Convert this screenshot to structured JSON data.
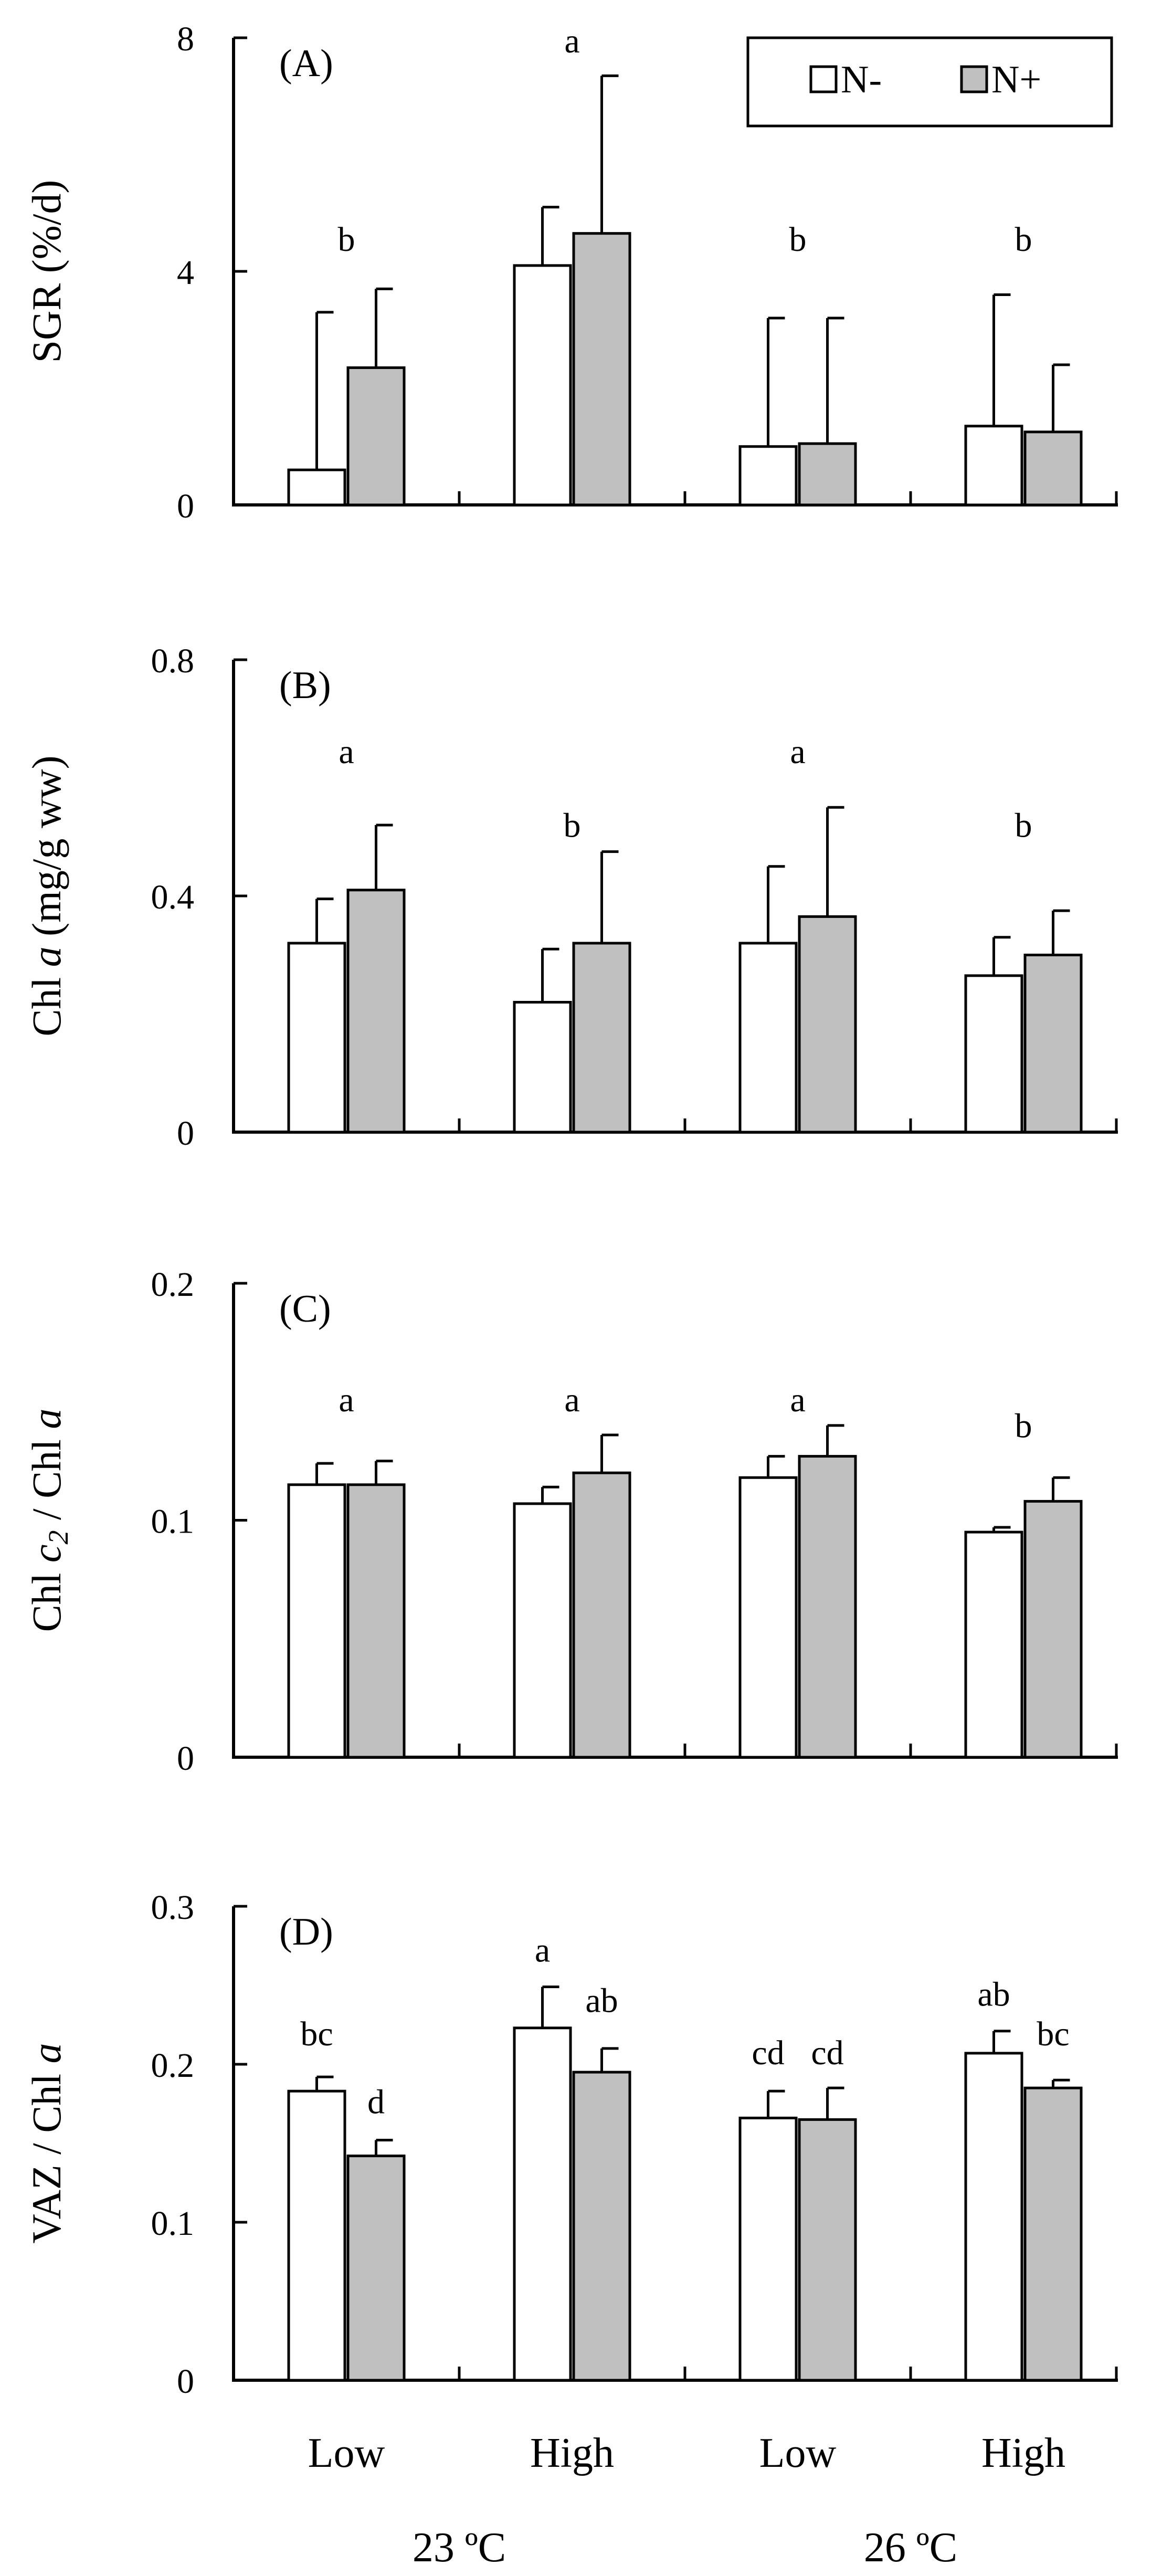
{
  "chart_data": [
    {
      "type": "bar",
      "panel_label": "(A)",
      "ylabel": "SGR (%/d)",
      "yticks": [
        {
          "v": 0,
          "t": "0"
        },
        {
          "v": 4,
          "t": "4"
        },
        {
          "v": 8,
          "t": "8"
        }
      ],
      "ylim": [
        0,
        8
      ],
      "categories": [
        "Low",
        "High",
        "Low",
        "High"
      ],
      "series": [
        {
          "name": "N-",
          "values": [
            0.6,
            4.1,
            1.0,
            1.35
          ],
          "errors": [
            2.7,
            1.0,
            2.2,
            2.25
          ]
        },
        {
          "name": "N+",
          "values": [
            2.35,
            4.65,
            1.05,
            1.25
          ],
          "errors": [
            1.35,
            2.7,
            2.15,
            1.15
          ]
        }
      ],
      "annotations": [
        {
          "text": "b",
          "category": 0,
          "anchor": "pair",
          "y": 4.35
        },
        {
          "text": "a",
          "category": 1,
          "anchor": "pair",
          "y": 7.75
        },
        {
          "text": "b",
          "category": 2,
          "anchor": "pair",
          "y": 4.35
        },
        {
          "text": "b",
          "category": 3,
          "anchor": "pair",
          "y": 4.35
        }
      ]
    },
    {
      "type": "bar",
      "panel_label": "(B)",
      "ylabel_main": "Chl ",
      "ylabel_italic": "a",
      "ylabel_tail": " (mg/g ww)",
      "yticks": [
        {
          "v": 0,
          "t": "0"
        },
        {
          "v": 0.4,
          "t": "0.4"
        },
        {
          "v": 0.8,
          "t": "0.8"
        }
      ],
      "ylim": [
        0,
        0.8
      ],
      "categories": [
        "Low",
        "High",
        "Low",
        "High"
      ],
      "series": [
        {
          "name": "N-",
          "values": [
            0.32,
            0.22,
            0.32,
            0.265
          ],
          "errors": [
            0.075,
            0.09,
            0.13,
            0.065
          ]
        },
        {
          "name": "N+",
          "values": [
            0.41,
            0.32,
            0.365,
            0.3
          ],
          "errors": [
            0.11,
            0.155,
            0.185,
            0.075
          ]
        }
      ],
      "annotations": [
        {
          "text": "a",
          "category": 0,
          "anchor": "pair",
          "y": 0.625
        },
        {
          "text": "b",
          "category": 1,
          "anchor": "pair",
          "y": 0.5
        },
        {
          "text": "a",
          "category": 2,
          "anchor": "pair",
          "y": 0.625
        },
        {
          "text": "b",
          "category": 3,
          "anchor": "pair",
          "y": 0.5
        }
      ]
    },
    {
      "type": "bar",
      "panel_label": "(C)",
      "ylabel_main": "Chl ",
      "ylabel_italic": "c",
      "ylabel_sub": "2",
      "ylabel_tail": " / Chl ",
      "ylabel_italic2": "a",
      "yticks": [
        {
          "v": 0,
          "t": "0"
        },
        {
          "v": 0.1,
          "t": "0.1"
        },
        {
          "v": 0.2,
          "t": "0.2"
        }
      ],
      "ylim": [
        0,
        0.2
      ],
      "categories": [
        "Low",
        "High",
        "Low",
        "High"
      ],
      "series": [
        {
          "name": "N-",
          "values": [
            0.115,
            0.107,
            0.118,
            0.095
          ],
          "errors": [
            0.009,
            0.007,
            0.009,
            0.002
          ]
        },
        {
          "name": "N+",
          "values": [
            0.115,
            0.12,
            0.127,
            0.108
          ],
          "errors": [
            0.01,
            0.016,
            0.013,
            0.01
          ]
        }
      ],
      "annotations": [
        {
          "text": "a",
          "category": 0,
          "anchor": "pair",
          "y": 0.146
        },
        {
          "text": "a",
          "category": 1,
          "anchor": "pair",
          "y": 0.146
        },
        {
          "text": "a",
          "category": 2,
          "anchor": "pair",
          "y": 0.146
        },
        {
          "text": "b",
          "category": 3,
          "anchor": "pair",
          "y": 0.135
        }
      ]
    },
    {
      "type": "bar",
      "panel_label": "(D)",
      "ylabel_main": "VAZ / Chl ",
      "ylabel_italic": "a",
      "yticks": [
        {
          "v": 0,
          "t": "0"
        },
        {
          "v": 0.1,
          "t": "0.1"
        },
        {
          "v": 0.2,
          "t": "0.2"
        },
        {
          "v": 0.3,
          "t": "0.3"
        }
      ],
      "ylim": [
        0,
        0.3
      ],
      "categories": [
        "Low",
        "High",
        "Low",
        "High"
      ],
      "series": [
        {
          "name": "N-",
          "values": [
            0.183,
            0.223,
            0.166,
            0.207
          ],
          "errors": [
            0.009,
            0.026,
            0.017,
            0.014
          ]
        },
        {
          "name": "N+",
          "values": [
            0.142,
            0.195,
            0.165,
            0.185
          ],
          "errors": [
            0.01,
            0.015,
            0.02,
            0.005
          ]
        }
      ],
      "annotations": [
        {
          "text": "bc",
          "category": 0,
          "anchor": "N-",
          "y": 0.212
        },
        {
          "text": "d",
          "category": 0,
          "anchor": "N+",
          "y": 0.169
        },
        {
          "text": "a",
          "category": 1,
          "anchor": "N-",
          "y": 0.265
        },
        {
          "text": "ab",
          "category": 1,
          "anchor": "N+",
          "y": 0.233
        },
        {
          "text": "cd",
          "category": 2,
          "anchor": "N-",
          "y": 0.2
        },
        {
          "text": "cd",
          "category": 2,
          "anchor": "N+",
          "y": 0.2
        },
        {
          "text": "ab",
          "category": 3,
          "anchor": "N-",
          "y": 0.237
        },
        {
          "text": "bc",
          "category": 3,
          "anchor": "N+",
          "y": 0.212
        }
      ]
    }
  ],
  "legend": {
    "items": [
      "N-",
      "N+"
    ]
  },
  "x_groups": [
    {
      "label": "23 ºC",
      "categories": [
        0,
        1
      ]
    },
    {
      "label": "26 ºC",
      "categories": [
        2,
        3
      ]
    }
  ],
  "colors": {
    "N-": "#ffffff",
    "N+": "#c0c0c0",
    "axis": "#000000"
  }
}
